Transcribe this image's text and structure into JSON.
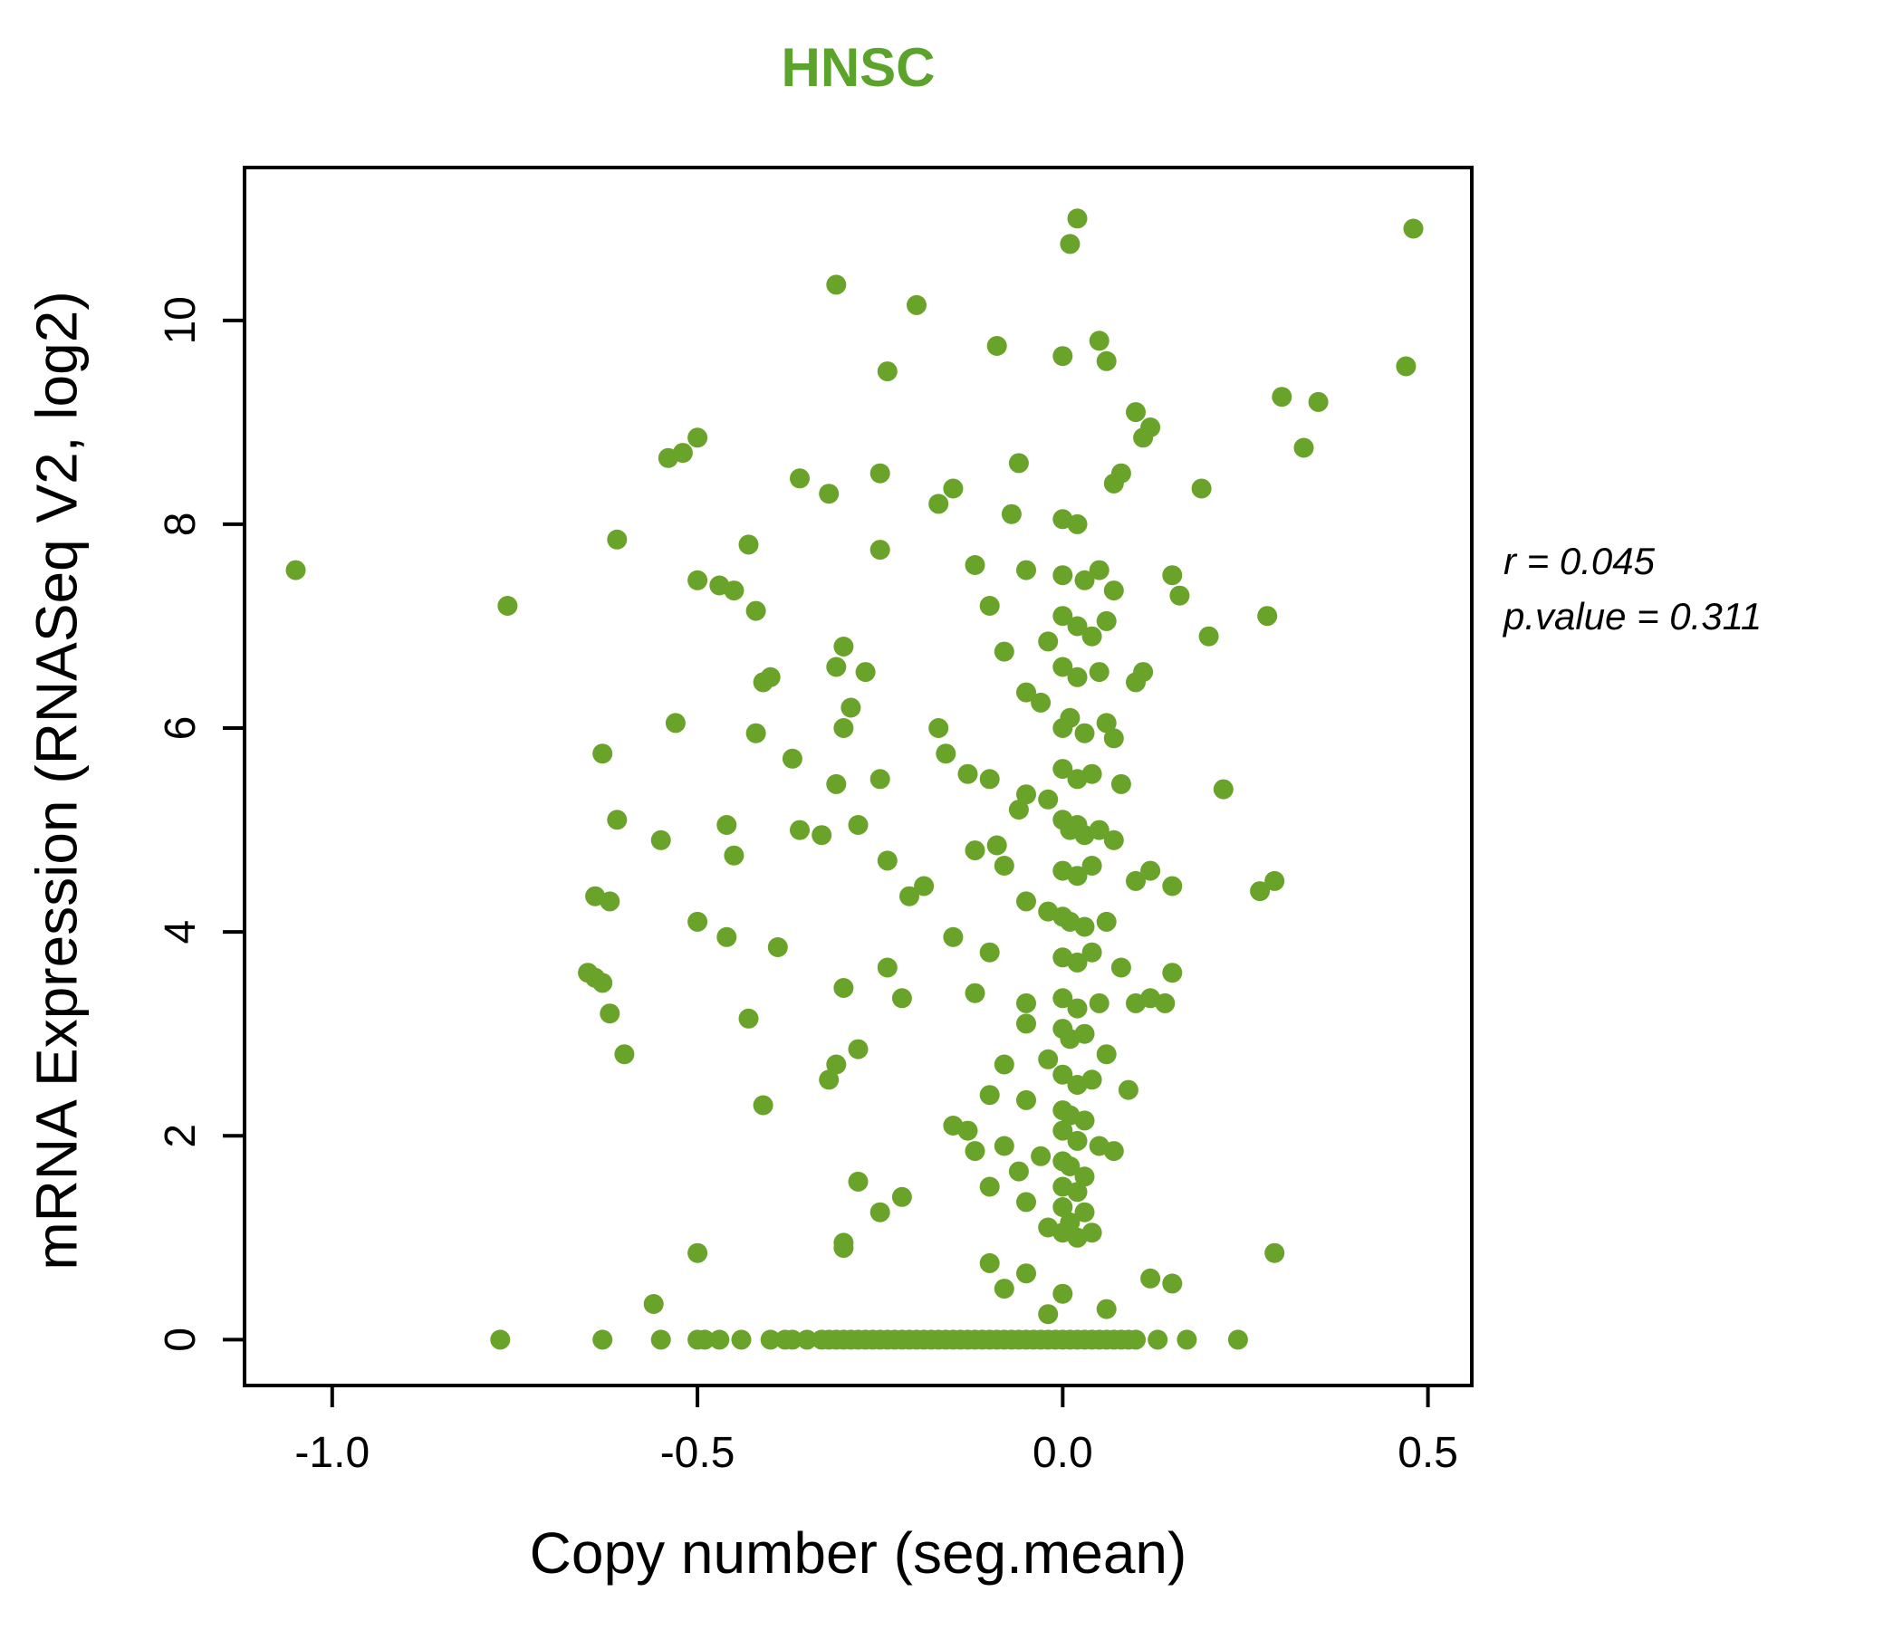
{
  "title": "HNSC",
  "colors": {
    "title": "#5ba32b",
    "points": "#69a32a",
    "axis": "#000000"
  },
  "xlabel": "Copy number (seg.mean)",
  "ylabel": "mRNA Expression (RNASeq V2, log2)",
  "annotation": {
    "line1": "r = 0.045",
    "line2": "p.value = 0.311"
  },
  "chart_data": {
    "type": "scatter",
    "title": "HNSC",
    "xlabel": "Copy number (seg.mean)",
    "ylabel": "mRNA Expression (RNASeq V2, log2)",
    "r": 0.045,
    "p_value": 0.311,
    "xlim": [
      -1.12,
      0.56
    ],
    "ylim": [
      -0.45,
      11.5
    ],
    "xticks": [
      -1.0,
      -0.5,
      0.0,
      0.5
    ],
    "yticks": [
      0,
      2,
      4,
      6,
      8,
      10
    ],
    "grid": false,
    "legend": "none",
    "points": [
      [
        -0.77,
        0
      ],
      [
        -0.63,
        0
      ],
      [
        -0.55,
        0
      ],
      [
        -0.5,
        0
      ],
      [
        -0.49,
        0
      ],
      [
        -0.47,
        0
      ],
      [
        -0.44,
        0
      ],
      [
        -0.4,
        0
      ],
      [
        -0.38,
        0
      ],
      [
        -0.37,
        0
      ],
      [
        -0.35,
        0
      ],
      [
        -0.33,
        0
      ],
      [
        -0.32,
        0
      ],
      [
        -0.31,
        0
      ],
      [
        -0.3,
        0
      ],
      [
        -0.29,
        0
      ],
      [
        -0.28,
        0
      ],
      [
        -0.27,
        0
      ],
      [
        -0.26,
        0
      ],
      [
        -0.25,
        0
      ],
      [
        -0.24,
        0
      ],
      [
        -0.23,
        0
      ],
      [
        -0.22,
        0
      ],
      [
        -0.21,
        0
      ],
      [
        -0.2,
        0
      ],
      [
        -0.19,
        0
      ],
      [
        -0.18,
        0
      ],
      [
        -0.17,
        0
      ],
      [
        -0.16,
        0
      ],
      [
        -0.15,
        0
      ],
      [
        -0.14,
        0
      ],
      [
        -0.13,
        0
      ],
      [
        -0.12,
        0
      ],
      [
        -0.11,
        0
      ],
      [
        -0.1,
        0
      ],
      [
        -0.09,
        0
      ],
      [
        -0.08,
        0
      ],
      [
        -0.07,
        0
      ],
      [
        -0.06,
        0
      ],
      [
        -0.05,
        0
      ],
      [
        -0.04,
        0
      ],
      [
        -0.03,
        0
      ],
      [
        -0.02,
        0
      ],
      [
        -0.01,
        0
      ],
      [
        0,
        0
      ],
      [
        0.01,
        0
      ],
      [
        0.02,
        0
      ],
      [
        0.03,
        0
      ],
      [
        0.04,
        0
      ],
      [
        0.05,
        0
      ],
      [
        0.06,
        0
      ],
      [
        0.07,
        0
      ],
      [
        0.08,
        0
      ],
      [
        0.09,
        0
      ],
      [
        0.1,
        0
      ],
      [
        0.13,
        0
      ],
      [
        0.17,
        0
      ],
      [
        0.24,
        0
      ],
      [
        -0.56,
        0.35
      ],
      [
        -0.5,
        0.85
      ],
      [
        -0.3,
        0.9
      ],
      [
        -0.1,
        0.75
      ],
      [
        -0.08,
        0.5
      ],
      [
        -0.05,
        0.65
      ],
      [
        -0.02,
        0.25
      ],
      [
        0,
        0.45
      ],
      [
        0.06,
        0.3
      ],
      [
        0.12,
        0.6
      ],
      [
        0.15,
        0.55
      ],
      [
        0.29,
        0.85
      ],
      [
        0.02,
        11
      ],
      [
        0.01,
        10.75
      ],
      [
        0.48,
        10.9
      ],
      [
        -0.31,
        10.35
      ],
      [
        -0.2,
        10.15
      ],
      [
        -0.09,
        9.75
      ],
      [
        0,
        9.65
      ],
      [
        0.05,
        9.8
      ],
      [
        0.06,
        9.6
      ],
      [
        0.47,
        9.55
      ],
      [
        -0.24,
        9.5
      ],
      [
        0.3,
        9.25
      ],
      [
        0.35,
        9.2
      ],
      [
        0.1,
        9.1
      ],
      [
        0.12,
        8.95
      ],
      [
        -0.5,
        8.85
      ],
      [
        -0.52,
        8.7
      ],
      [
        -0.54,
        8.65
      ],
      [
        0.11,
        8.85
      ],
      [
        0.33,
        8.75
      ],
      [
        -0.06,
        8.6
      ],
      [
        -0.36,
        8.45
      ],
      [
        -0.32,
        8.3
      ],
      [
        -0.25,
        8.5
      ],
      [
        0.08,
        8.5
      ],
      [
        0.07,
        8.4
      ],
      [
        -0.15,
        8.35
      ],
      [
        -0.17,
        8.2
      ],
      [
        0.19,
        8.35
      ],
      [
        -0.07,
        8.1
      ],
      [
        0,
        8.05
      ],
      [
        0.02,
        8
      ],
      [
        -0.61,
        7.85
      ],
      [
        -0.43,
        7.8
      ],
      [
        -0.25,
        7.75
      ],
      [
        -1.05,
        7.55
      ],
      [
        -0.5,
        7.45
      ],
      [
        -0.47,
        7.4
      ],
      [
        -0.45,
        7.35
      ],
      [
        -0.12,
        7.6
      ],
      [
        -0.05,
        7.55
      ],
      [
        0,
        7.5
      ],
      [
        0.03,
        7.45
      ],
      [
        0.05,
        7.55
      ],
      [
        0.07,
        7.35
      ],
      [
        0.15,
        7.5
      ],
      [
        0.16,
        7.3
      ],
      [
        -0.76,
        7.2
      ],
      [
        -0.42,
        7.15
      ],
      [
        -0.1,
        7.2
      ],
      [
        0,
        7.1
      ],
      [
        0.02,
        7
      ],
      [
        0.06,
        7.05
      ],
      [
        0.28,
        7.1
      ],
      [
        0.2,
        6.9
      ],
      [
        0.04,
        6.9
      ],
      [
        -0.02,
        6.85
      ],
      [
        -0.08,
        6.75
      ],
      [
        -0.3,
        6.8
      ],
      [
        -0.31,
        6.6
      ],
      [
        -0.27,
        6.55
      ],
      [
        -0.4,
        6.5
      ],
      [
        -0.41,
        6.45
      ],
      [
        0,
        6.6
      ],
      [
        0.02,
        6.5
      ],
      [
        0.05,
        6.55
      ],
      [
        0.1,
        6.45
      ],
      [
        0.11,
        6.55
      ],
      [
        -0.05,
        6.35
      ],
      [
        -0.03,
        6.25
      ],
      [
        -0.29,
        6.2
      ],
      [
        0.01,
        6.1
      ],
      [
        -0.53,
        6.05
      ],
      [
        -0.42,
        5.95
      ],
      [
        -0.3,
        6
      ],
      [
        -0.17,
        6
      ],
      [
        0,
        6
      ],
      [
        0.03,
        5.95
      ],
      [
        0.06,
        6.05
      ],
      [
        0.07,
        5.9
      ],
      [
        -0.16,
        5.75
      ],
      [
        -0.63,
        5.75
      ],
      [
        -0.37,
        5.7
      ],
      [
        -0.13,
        5.55
      ],
      [
        -0.1,
        5.5
      ],
      [
        -0.25,
        5.5
      ],
      [
        -0.31,
        5.45
      ],
      [
        0,
        5.6
      ],
      [
        0.02,
        5.5
      ],
      [
        0.04,
        5.55
      ],
      [
        0.08,
        5.45
      ],
      [
        0.22,
        5.4
      ],
      [
        -0.05,
        5.35
      ],
      [
        -0.02,
        5.3
      ],
      [
        -0.06,
        5.2
      ],
      [
        -0.61,
        5.1
      ],
      [
        -0.46,
        5.05
      ],
      [
        -0.36,
        5
      ],
      [
        -0.33,
        4.95
      ],
      [
        -0.28,
        5.05
      ],
      [
        0,
        5.1
      ],
      [
        0.01,
        5
      ],
      [
        0.02,
        5.05
      ],
      [
        0.03,
        4.95
      ],
      [
        0.05,
        5
      ],
      [
        0.07,
        4.9
      ],
      [
        -0.09,
        4.85
      ],
      [
        -0.12,
        4.8
      ],
      [
        -0.55,
        4.9
      ],
      [
        -0.45,
        4.75
      ],
      [
        -0.24,
        4.7
      ],
      [
        -0.08,
        4.65
      ],
      [
        0,
        4.6
      ],
      [
        0.02,
        4.55
      ],
      [
        0.04,
        4.65
      ],
      [
        0.1,
        4.5
      ],
      [
        0.12,
        4.6
      ],
      [
        0.15,
        4.45
      ],
      [
        0.27,
        4.4
      ],
      [
        0.29,
        4.5
      ],
      [
        -0.19,
        4.45
      ],
      [
        -0.21,
        4.35
      ],
      [
        -0.64,
        4.35
      ],
      [
        -0.62,
        4.3
      ],
      [
        -0.05,
        4.3
      ],
      [
        -0.02,
        4.2
      ],
      [
        0,
        4.15
      ],
      [
        0.01,
        4.1
      ],
      [
        0.03,
        4.05
      ],
      [
        0.06,
        4.1
      ],
      [
        -0.5,
        4.1
      ],
      [
        -0.46,
        3.95
      ],
      [
        -0.39,
        3.85
      ],
      [
        -0.15,
        3.95
      ],
      [
        -0.1,
        3.8
      ],
      [
        0,
        3.75
      ],
      [
        0.02,
        3.7
      ],
      [
        0.04,
        3.8
      ],
      [
        0.08,
        3.65
      ],
      [
        0.15,
        3.6
      ],
      [
        -0.24,
        3.65
      ],
      [
        -0.65,
        3.6
      ],
      [
        -0.64,
        3.55
      ],
      [
        -0.63,
        3.5
      ],
      [
        -0.3,
        3.45
      ],
      [
        -0.22,
        3.35
      ],
      [
        -0.12,
        3.4
      ],
      [
        -0.05,
        3.3
      ],
      [
        0,
        3.35
      ],
      [
        0.02,
        3.25
      ],
      [
        0.05,
        3.3
      ],
      [
        0.1,
        3.3
      ],
      [
        0.12,
        3.35
      ],
      [
        0.14,
        3.3
      ],
      [
        -0.62,
        3.2
      ],
      [
        -0.43,
        3.15
      ],
      [
        -0.28,
        2.85
      ],
      [
        -0.6,
        2.8
      ],
      [
        -0.05,
        3.1
      ],
      [
        0,
        3.05
      ],
      [
        0.01,
        2.95
      ],
      [
        0.03,
        3
      ],
      [
        0.06,
        2.8
      ],
      [
        -0.02,
        2.75
      ],
      [
        -0.08,
        2.7
      ],
      [
        -0.31,
        2.7
      ],
      [
        -0.32,
        2.55
      ],
      [
        0,
        2.6
      ],
      [
        0.02,
        2.5
      ],
      [
        0.04,
        2.55
      ],
      [
        0.09,
        2.45
      ],
      [
        -0.1,
        2.4
      ],
      [
        -0.41,
        2.3
      ],
      [
        -0.05,
        2.35
      ],
      [
        0,
        2.25
      ],
      [
        0.01,
        2.2
      ],
      [
        0.03,
        2.15
      ],
      [
        -0.15,
        2.1
      ],
      [
        -0.13,
        2.05
      ],
      [
        0,
        2.05
      ],
      [
        0.02,
        1.95
      ],
      [
        -0.08,
        1.9
      ],
      [
        -0.12,
        1.85
      ],
      [
        0.05,
        1.9
      ],
      [
        0.07,
        1.85
      ],
      [
        -0.03,
        1.8
      ],
      [
        0,
        1.75
      ],
      [
        0.01,
        1.7
      ],
      [
        -0.06,
        1.65
      ],
      [
        0.03,
        1.6
      ],
      [
        -0.28,
        1.55
      ],
      [
        -0.1,
        1.5
      ],
      [
        0,
        1.5
      ],
      [
        0.02,
        1.45
      ],
      [
        -0.22,
        1.4
      ],
      [
        -0.05,
        1.35
      ],
      [
        0,
        1.3
      ],
      [
        0.03,
        1.25
      ],
      [
        -0.25,
        1.25
      ],
      [
        0.01,
        1.15
      ],
      [
        -0.02,
        1.1
      ],
      [
        0,
        1.05
      ],
      [
        0.02,
        1
      ],
      [
        0.04,
        1.05
      ],
      [
        -0.3,
        0.95
      ]
    ]
  },
  "layout_meta": {
    "tick_format_x": "one_decimal",
    "tick_format_y": "integer"
  }
}
